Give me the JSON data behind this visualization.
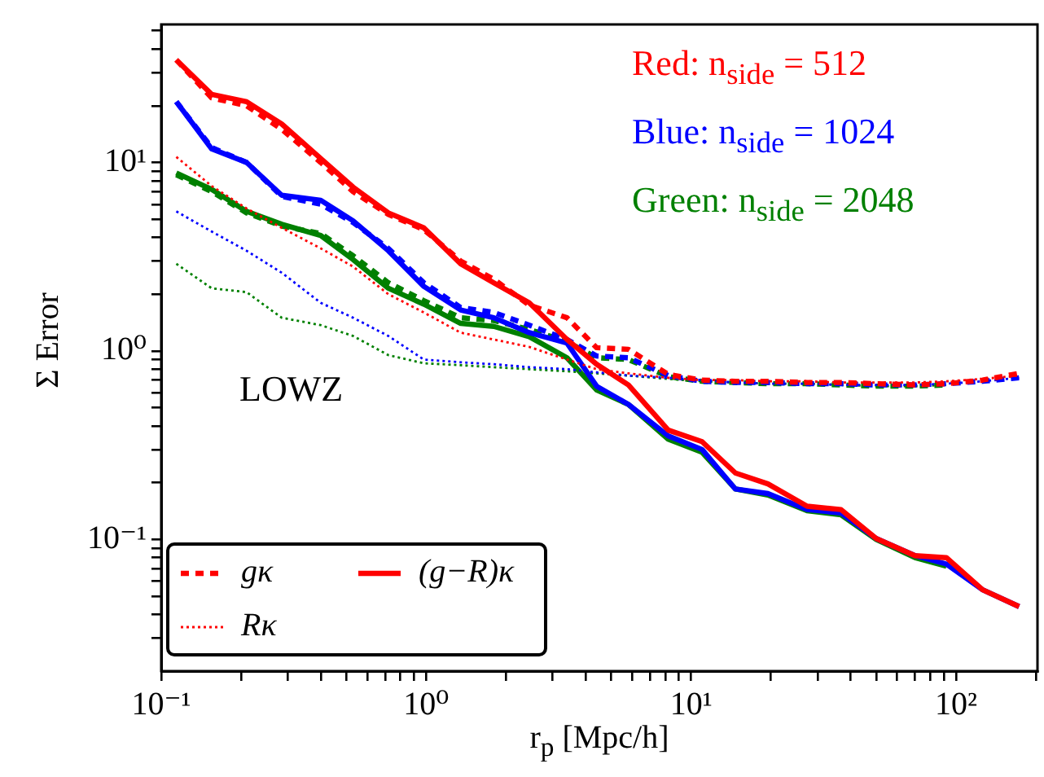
{
  "chart_data": {
    "type": "line",
    "xlabel": "r$_{p}$ [Mpc/h]",
    "ylabel": "Σ Error",
    "annotations": [
      "Red: n$_{side}$ = 512",
      "Blue: n$_{side}$ = 1024",
      "Green: n$_{side}$ = 2048",
      "LOWZ"
    ],
    "log": "xy",
    "legend": "bottom left",
    "xlim": [
      0.1,
      203
    ],
    "ylim": [
      0.02,
      54
    ],
    "xticks": [
      {
        "value": 0.1,
        "label": "10⁻¹"
      },
      {
        "value": 0.2,
        "label": null
      },
      {
        "value": 0.3,
        "label": null
      },
      {
        "value": 0.4,
        "label": null
      },
      {
        "value": 0.5,
        "label": null
      },
      {
        "value": 0.6,
        "label": null
      },
      {
        "value": 0.7,
        "label": null
      },
      {
        "value": 0.8,
        "label": null
      },
      {
        "value": 0.9,
        "label": null
      },
      {
        "value": 1,
        "label": "10⁰"
      },
      {
        "value": 2,
        "label": null
      },
      {
        "value": 3,
        "label": null
      },
      {
        "value": 4,
        "label": null
      },
      {
        "value": 5,
        "label": null
      },
      {
        "value": 6,
        "label": null
      },
      {
        "value": 7,
        "label": null
      },
      {
        "value": 8,
        "label": null
      },
      {
        "value": 9,
        "label": null
      },
      {
        "value": 10,
        "label": "10¹"
      },
      {
        "value": 20,
        "label": null
      },
      {
        "value": 30,
        "label": null
      },
      {
        "value": 40,
        "label": null
      },
      {
        "value": 50,
        "label": null
      },
      {
        "value": 60,
        "label": null
      },
      {
        "value": 70,
        "label": null
      },
      {
        "value": 80,
        "label": null
      },
      {
        "value": 90,
        "label": null
      },
      {
        "value": 100,
        "label": "10²"
      },
      {
        "value": 200,
        "label": null
      }
    ],
    "yticks": [
      {
        "value": 0.03,
        "label": null
      },
      {
        "value": 0.04,
        "label": null
      },
      {
        "value": 0.05,
        "label": null
      },
      {
        "value": 0.06,
        "label": null
      },
      {
        "value": 0.07,
        "label": null
      },
      {
        "value": 0.08,
        "label": null
      },
      {
        "value": 0.09,
        "label": null
      },
      {
        "value": 0.1,
        "label": "10⁻¹"
      },
      {
        "value": 0.2,
        "label": null
      },
      {
        "value": 0.3,
        "label": null
      },
      {
        "value": 0.4,
        "label": null
      },
      {
        "value": 0.5,
        "label": null
      },
      {
        "value": 0.6,
        "label": null
      },
      {
        "value": 0.7,
        "label": null
      },
      {
        "value": 0.8,
        "label": null
      },
      {
        "value": 0.9,
        "label": null
      },
      {
        "value": 1,
        "label": "10⁰"
      },
      {
        "value": 2,
        "label": null
      },
      {
        "value": 3,
        "label": null
      },
      {
        "value": 4,
        "label": null
      },
      {
        "value": 5,
        "label": null
      },
      {
        "value": 6,
        "label": null
      },
      {
        "value": 7,
        "label": null
      },
      {
        "value": 8,
        "label": null
      },
      {
        "value": 9,
        "label": null
      },
      {
        "value": 10,
        "label": "10¹"
      },
      {
        "value": 20,
        "label": null
      },
      {
        "value": 30,
        "label": null
      },
      {
        "value": 40,
        "label": null
      },
      {
        "value": 50,
        "label": null
      }
    ],
    "x": [
      0.114,
      0.155,
      0.21,
      0.285,
      0.4,
      0.53,
      0.72,
      0.98,
      1.35,
      1.8,
      2.45,
      3.4,
      4.4,
      5.8,
      8.2,
      11,
      14.7,
      19.5,
      27.4,
      36.8,
      50,
      70,
      92,
      126,
      173
    ],
    "series": [
      {
        "name": "gκ",
        "color": "#ff0000",
        "line_style": "dashed",
        "values": [
          35,
          22,
          20,
          15,
          10,
          7,
          5.3,
          4.4,
          3.0,
          2.4,
          1.75,
          1.5,
          1.04,
          1.02,
          0.75,
          0.7,
          0.69,
          0.69,
          0.68,
          0.68,
          0.67,
          0.66,
          0.67,
          0.7,
          0.76
        ]
      },
      {
        "name": "Rκ",
        "color": "#ff0000",
        "line_style": "dotted",
        "values": [
          10.7,
          7.5,
          5.7,
          4.5,
          3.5,
          2.8,
          2.0,
          1.6,
          1.25,
          1.15,
          1.05,
          0.9,
          0.8,
          0.76,
          0.72,
          0.7,
          0.7,
          0.69,
          0.69,
          0.68,
          0.68,
          0.68,
          0.69,
          0.71,
          0.74
        ]
      },
      {
        "name": "(g−R)κ",
        "color": "#ff0000",
        "line_style": "solid",
        "values": [
          35,
          23,
          21,
          16,
          10.5,
          7.4,
          5.4,
          4.5,
          2.9,
          2.3,
          1.8,
          1.15,
          0.85,
          0.66,
          0.38,
          0.33,
          0.225,
          0.197,
          0.15,
          0.144,
          0.101,
          0.082,
          0.08,
          0.054,
          0.044
        ]
      },
      {
        "color": "#0000ff",
        "line_style": "dashed",
        "values": [
          21,
          12,
          10,
          6.6,
          6.0,
          4.8,
          3.5,
          2.3,
          1.7,
          1.6,
          1.37,
          1.15,
          0.94,
          0.92,
          0.74,
          0.69,
          0.68,
          0.68,
          0.67,
          0.67,
          0.66,
          0.66,
          0.67,
          0.69,
          0.72
        ]
      },
      {
        "color": "#0000ff",
        "line_style": "dotted",
        "values": [
          5.5,
          4.3,
          3.4,
          2.6,
          1.8,
          1.5,
          1.2,
          0.9,
          0.87,
          0.85,
          0.82,
          0.8,
          0.77,
          0.74,
          0.72,
          0.7,
          0.68,
          0.67,
          0.67,
          0.66,
          0.66,
          0.66,
          0.67,
          0.69,
          0.72
        ]
      },
      {
        "color": "#0000ff",
        "line_style": "solid",
        "values": [
          21,
          11.8,
          10,
          6.7,
          6.3,
          4.9,
          3.4,
          2.2,
          1.65,
          1.5,
          1.25,
          1.1,
          0.65,
          0.52,
          0.354,
          0.3,
          0.185,
          0.175,
          0.144,
          0.138,
          0.101,
          0.082,
          0.074,
          0.054,
          0.044
        ]
      },
      {
        "color": "#008000",
        "line_style": "dashed",
        "values": [
          8.6,
          7,
          5.4,
          4.6,
          4.2,
          3.2,
          2.3,
          1.85,
          1.5,
          1.45,
          1.3,
          1.12,
          0.92,
          0.9,
          0.73,
          0.69,
          0.68,
          0.67,
          0.67,
          0.66,
          0.65,
          0.65,
          0.66,
          null,
          null
        ]
      },
      {
        "color": "#008000",
        "line_style": "dotted",
        "values": [
          2.9,
          2.15,
          2.05,
          1.5,
          1.37,
          1.2,
          0.95,
          0.86,
          0.84,
          0.82,
          0.8,
          0.78,
          0.76,
          0.74,
          0.71,
          0.69,
          0.68,
          0.67,
          0.67,
          0.66,
          0.65,
          0.65,
          0.66,
          null,
          null
        ]
      },
      {
        "color": "#008000",
        "line_style": "solid",
        "values": [
          8.8,
          7.2,
          5.5,
          4.7,
          4.1,
          3.05,
          2.15,
          1.77,
          1.4,
          1.35,
          1.19,
          0.92,
          0.62,
          0.52,
          0.34,
          0.29,
          0.185,
          0.172,
          0.142,
          0.135,
          0.1,
          0.08,
          0.072,
          null,
          null
        ]
      }
    ]
  }
}
